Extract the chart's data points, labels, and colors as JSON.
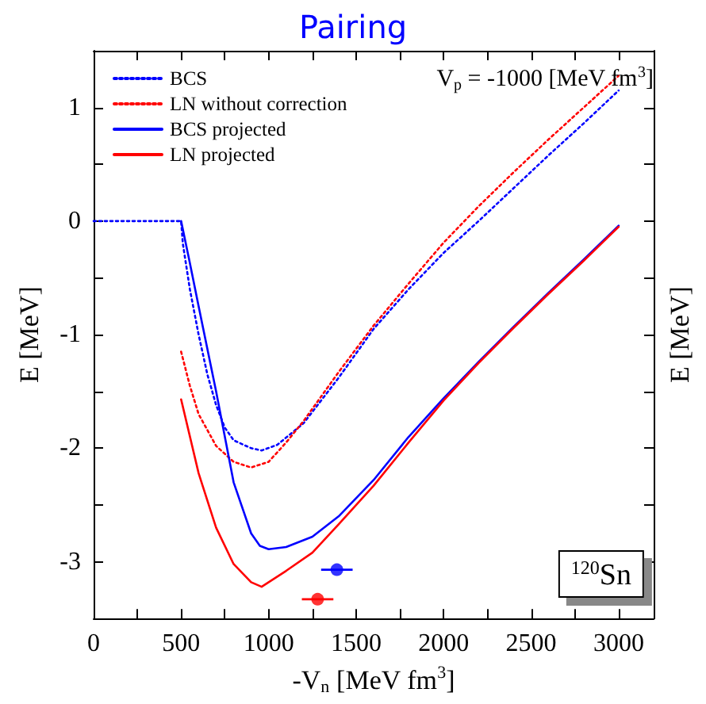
{
  "chart_data": {
    "type": "line",
    "title": "Pairing",
    "xlabel": "-V$_{n}$ [MeV fm$^{3}$]",
    "ylabel": "E [MeV]",
    "y2label": "E [MeV]",
    "xlim": [
      0,
      3200
    ],
    "ylim": [
      -3.5,
      1.5
    ],
    "xticks": [
      0,
      {
        "value": 250,
        "label": null
      },
      500,
      {
        "value": 750,
        "label": null
      },
      1000,
      {
        "value": 1250,
        "label": null
      },
      1500,
      {
        "value": 1750,
        "label": null
      },
      2000,
      {
        "value": 2250,
        "label": null
      },
      2500,
      {
        "value": 2750,
        "label": null
      },
      3000
    ],
    "yticks": [
      {
        "value": -3.5,
        "label": null
      },
      -3,
      {
        "value": -2.5,
        "label": null
      },
      -2,
      {
        "value": -1.5,
        "label": null
      },
      -1,
      {
        "value": -0.5,
        "label": null
      },
      0,
      {
        "value": 0.5,
        "label": null
      },
      1
    ],
    "legend": "top left",
    "grid": false,
    "marker": "none",
    "annotations": [
      "V$_{p}$ = -1000 [MeV fm$^{3}$]",
      "$^{120}$Sn"
    ],
    "series": [
      {
        "name": "BCS",
        "color": "#0000ff",
        "line_style": "dotted",
        "x": [
          0,
          500,
          510,
          550,
          600,
          650,
          700,
          750,
          800,
          900,
          960,
          1050,
          1200,
          1400,
          1600,
          1800,
          2000,
          2200,
          2400,
          2600,
          2800,
          3000
        ],
        "values": [
          0,
          0,
          -0.2,
          -0.6,
          -1.0,
          -1.35,
          -1.62,
          -1.82,
          -1.93,
          -2.0,
          -2.02,
          -1.97,
          -1.78,
          -1.38,
          -0.95,
          -0.6,
          -0.28,
          0.0,
          0.29,
          0.58,
          0.86,
          1.15
        ]
      },
      {
        "name": "LN without correction",
        "color": "#ff0000",
        "line_style": "dotted",
        "x": [
          500,
          550,
          600,
          700,
          800,
          900,
          1000,
          1100,
          1200,
          1400,
          1600,
          1800,
          2000,
          2200,
          2400,
          2600,
          2800,
          3000
        ],
        "values": [
          -1.15,
          -1.45,
          -1.7,
          -1.98,
          -2.12,
          -2.17,
          -2.12,
          -1.95,
          -1.76,
          -1.33,
          -0.92,
          -0.55,
          -0.19,
          0.13,
          0.43,
          0.72,
          1.0,
          1.28
        ]
      },
      {
        "name": "BCS projected",
        "color": "#0000ff",
        "line_style": "solid",
        "x": [
          500,
          550,
          600,
          700,
          800,
          900,
          950,
          1000,
          1100,
          1250,
          1400,
          1600,
          1800,
          2000,
          2200,
          2400,
          2600,
          2800,
          3000
        ],
        "values": [
          0,
          -0.37,
          -0.75,
          -1.5,
          -2.3,
          -2.75,
          -2.86,
          -2.89,
          -2.87,
          -2.78,
          -2.6,
          -2.28,
          -1.9,
          -1.56,
          -1.24,
          -0.93,
          -0.63,
          -0.34,
          -0.04
        ]
      },
      {
        "name": "LN projected",
        "color": "#ff0000",
        "line_style": "solid",
        "x": [
          500,
          600,
          700,
          800,
          900,
          960,
          1100,
          1250,
          1400,
          1600,
          1800,
          2000,
          2200,
          2400,
          2600,
          2800,
          3000
        ],
        "values": [
          -1.57,
          -2.22,
          -2.7,
          -3.02,
          -3.18,
          -3.22,
          -3.08,
          -2.92,
          -2.67,
          -2.33,
          -1.95,
          -1.58,
          -1.25,
          -0.94,
          -0.64,
          -0.35,
          -0.05
        ]
      },
      {
        "type": "scatter",
        "marker": "circle",
        "color": "#0000ff",
        "x": [
          1390
        ],
        "values": [
          -3.07
        ],
        "xerrors": [
          90
        ]
      },
      {
        "type": "scatter",
        "marker": "circle",
        "color": "#ff0000",
        "x": [
          1280
        ],
        "values": [
          -3.33
        ],
        "xerrors": [
          90
        ]
      }
    ]
  }
}
